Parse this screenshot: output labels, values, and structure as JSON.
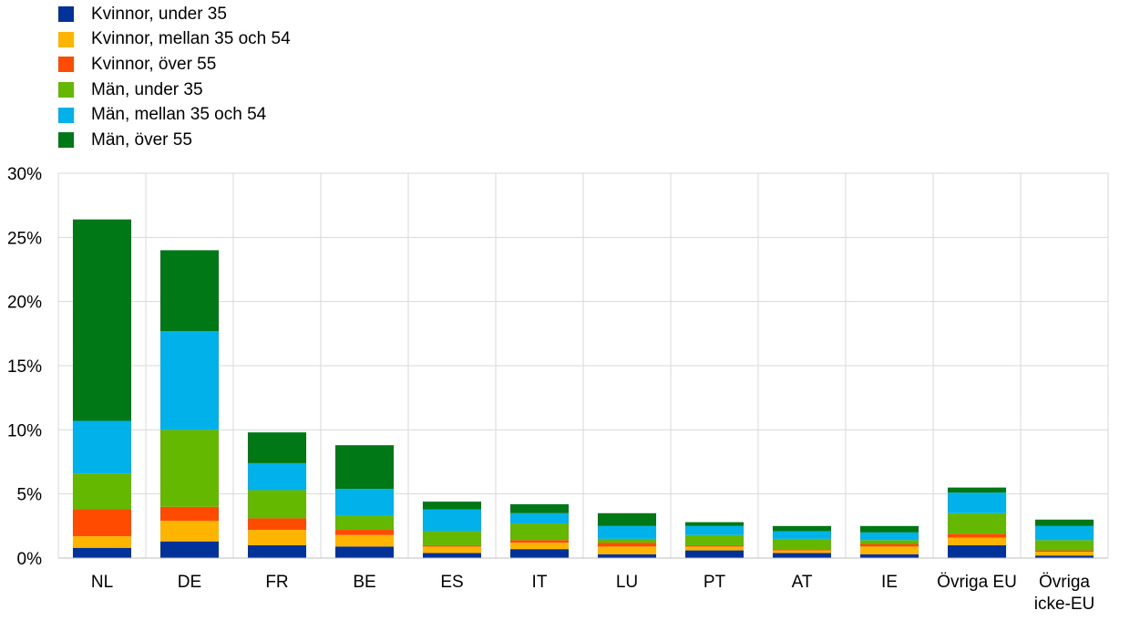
{
  "chart_data": {
    "type": "bar",
    "stacked": true,
    "categories": [
      "NL",
      "DE",
      "FR",
      "BE",
      "ES",
      "IT",
      "LU",
      "PT",
      "AT",
      "IE",
      "Övriga EU",
      "Övriga icke-EU"
    ],
    "category_lines": [
      [
        "NL"
      ],
      [
        "DE"
      ],
      [
        "FR"
      ],
      [
        "BE"
      ],
      [
        "ES"
      ],
      [
        "IT"
      ],
      [
        "LU"
      ],
      [
        "PT"
      ],
      [
        "AT"
      ],
      [
        "IE"
      ],
      [
        "Övriga EU"
      ],
      [
        "Övriga",
        "icke-EU"
      ]
    ],
    "series": [
      {
        "name": "Kvinnor, under 35",
        "color": "#003299",
        "values": [
          0.8,
          1.3,
          1.0,
          0.9,
          0.4,
          0.7,
          0.3,
          0.6,
          0.4,
          0.3,
          1.0,
          0.2
        ]
      },
      {
        "name": "Kvinnor, mellan 35 och 54",
        "color": "#FFB400",
        "values": [
          0.9,
          1.6,
          1.2,
          0.9,
          0.5,
          0.5,
          0.6,
          0.3,
          0.2,
          0.6,
          0.6,
          0.3
        ]
      },
      {
        "name": "Kvinnor, över 55",
        "color": "#FF4B00",
        "values": [
          2.1,
          1.1,
          0.9,
          0.4,
          0.1,
          0.2,
          0.3,
          0.1,
          0.1,
          0.2,
          0.3,
          0.1
        ]
      },
      {
        "name": "Män, under 35",
        "color": "#65B800",
        "values": [
          2.8,
          6.0,
          2.2,
          1.1,
          1.1,
          1.3,
          0.3,
          0.8,
          0.8,
          0.3,
          1.6,
          0.8
        ]
      },
      {
        "name": "Män, mellan 35 och 54",
        "color": "#00B1EA",
        "values": [
          4.1,
          7.7,
          2.1,
          2.1,
          1.7,
          0.8,
          1.0,
          0.7,
          0.6,
          0.6,
          1.6,
          1.1
        ]
      },
      {
        "name": "Män, över 55",
        "color": "#007816",
        "values": [
          15.7,
          6.3,
          2.4,
          3.4,
          0.6,
          0.7,
          1.0,
          0.3,
          0.4,
          0.5,
          0.4,
          0.5
        ]
      }
    ],
    "ylim": [
      0,
      30
    ],
    "yticks": [
      0,
      5,
      10,
      15,
      20,
      25,
      30
    ],
    "ytick_labels": [
      "0%",
      "5%",
      "10%",
      "15%",
      "20%",
      "25%",
      "30%"
    ],
    "title": "",
    "xlabel": "",
    "ylabel": "",
    "grid": true,
    "legend_position": "top-left"
  }
}
